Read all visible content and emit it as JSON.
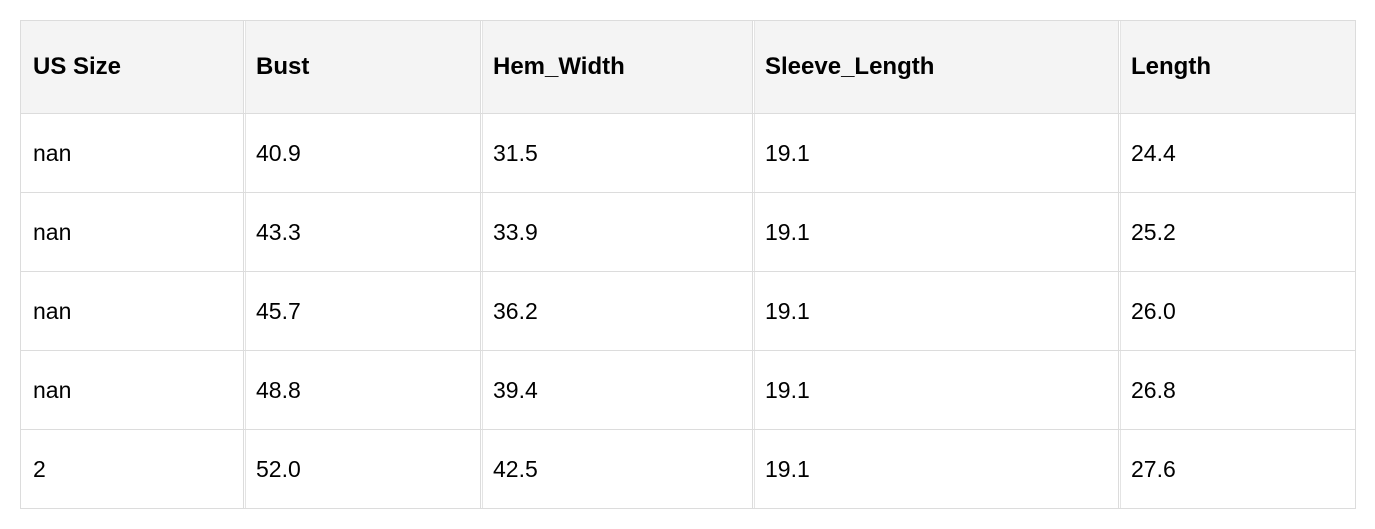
{
  "table": {
    "headers": [
      "US Size",
      "Bust",
      "Hem_Width",
      "Sleeve_Length",
      "Length"
    ],
    "rows": [
      [
        "nan",
        "40.9",
        "31.5",
        "19.1",
        "24.4"
      ],
      [
        "nan",
        "43.3",
        "33.9",
        "19.1",
        "25.2"
      ],
      [
        "nan",
        "45.7",
        "36.2",
        "19.1",
        "26.0"
      ],
      [
        "nan",
        "48.8",
        "39.4",
        "19.1",
        "26.8"
      ],
      [
        "2",
        "52.0",
        "42.5",
        "19.1",
        "27.6"
      ]
    ]
  }
}
